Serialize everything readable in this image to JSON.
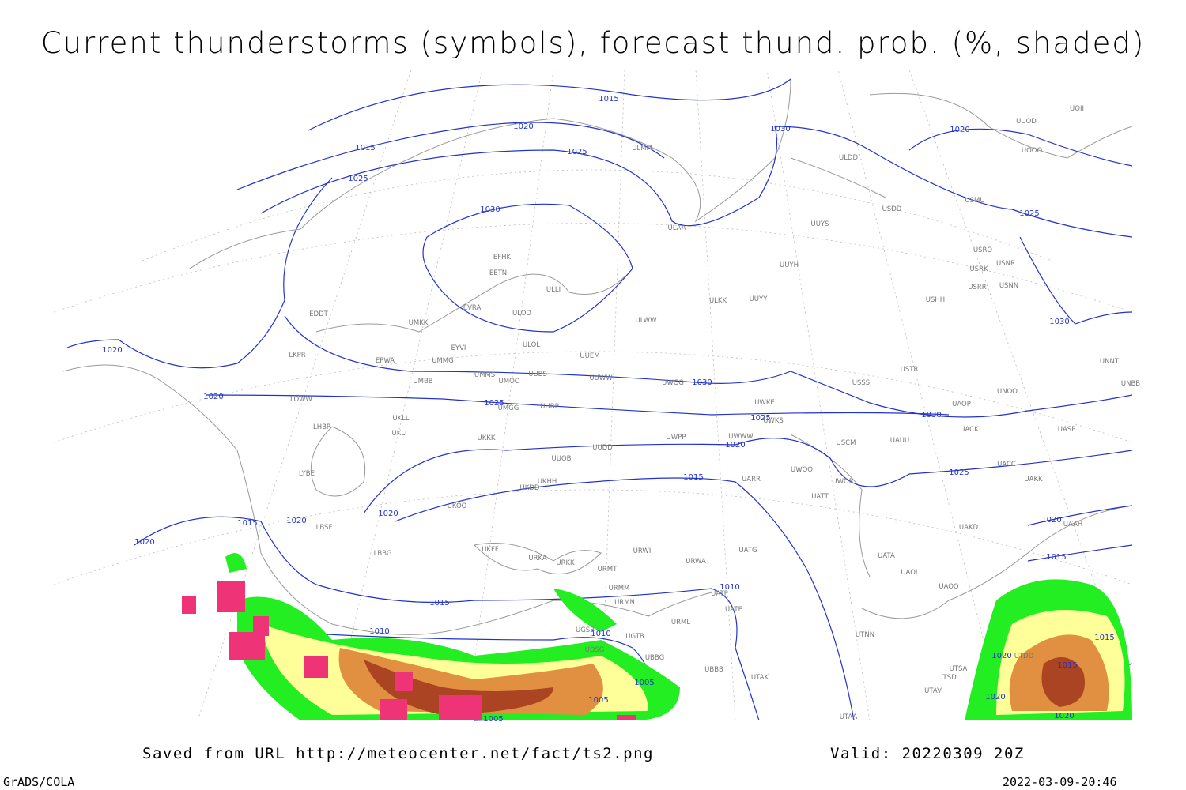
{
  "title": "Current thunderstorms (symbols), forecast thund. prob. (%, shaded)",
  "footer": {
    "source": "Saved from URL http://meteocenter.net/fact/ts2.png",
    "valid": "Valid: 20220309 20Z",
    "software": "GrADS/COLA",
    "timestamp": "2022-03-09-20:46"
  },
  "isobar_labels": [
    "1015",
    "1020",
    "1015",
    "1025",
    "1025",
    "1030",
    "1030",
    "1020",
    "1025",
    "1030",
    "1020",
    "1020",
    "1030",
    "1025",
    "1025",
    "1030",
    "1020",
    "1015",
    "1025",
    "1020",
    "1015",
    "1020",
    "1020",
    "1020",
    "1015",
    "1010",
    "1015",
    "1010",
    "1010",
    "1005",
    "1005",
    "1005",
    "1015",
    "1015",
    "1020",
    "1020",
    "1020"
  ],
  "stations": [
    "EFHK",
    "EETN",
    "EVRA",
    "ULOD",
    "UMKK",
    "EDDT",
    "ULOL",
    "UUEM",
    "EYVI",
    "UMMG",
    "EPWA",
    "LKPR",
    "UMMS",
    "UMOO",
    "UUBS",
    "UUWW",
    "UMBB",
    "ULKK",
    "UUYY",
    "ULWW",
    "UUYH",
    "UUYS",
    "ULAA",
    "ULLI",
    "ULMM",
    "ULDD",
    "USDD",
    "USMU",
    "USRO",
    "USRK",
    "USHH",
    "USRR",
    "USNR",
    "USNN",
    "USSS",
    "USTR",
    "UNNT",
    "UNBB",
    "UNOO",
    "UAOP",
    "UACK",
    "UASP",
    "USCM",
    "UAUU",
    "UWOO",
    "UWOR",
    "UATT",
    "UARR",
    "UWPP",
    "UWWW",
    "UWKE",
    "UWKS",
    "UWGG",
    "UMGG",
    "UUBP",
    "UKLL",
    "UKLI",
    "UKKK",
    "UUDD",
    "UUOB",
    "UKHH",
    "UKDD",
    "UKOO",
    "LOWW",
    "LHBP",
    "LYBE",
    "LBSF",
    "LBBG",
    "UKFF",
    "URKA",
    "URKK",
    "URMT",
    "URMM",
    "URMN",
    "URWI",
    "URWA",
    "UATG",
    "UATP",
    "UATE",
    "UTNN",
    "UTAK",
    "UBBB",
    "URML",
    "UGTB",
    "UBBG",
    "UGSB",
    "UDSG",
    "UTDD",
    "UTSA",
    "UTSD",
    "UTAV",
    "UTAA",
    "UAKD",
    "UAAH",
    "UATA",
    "UAOL",
    "UAOO",
    "UACC",
    "UAKK",
    "UUOD",
    "UOOO",
    "UOII"
  ]
}
